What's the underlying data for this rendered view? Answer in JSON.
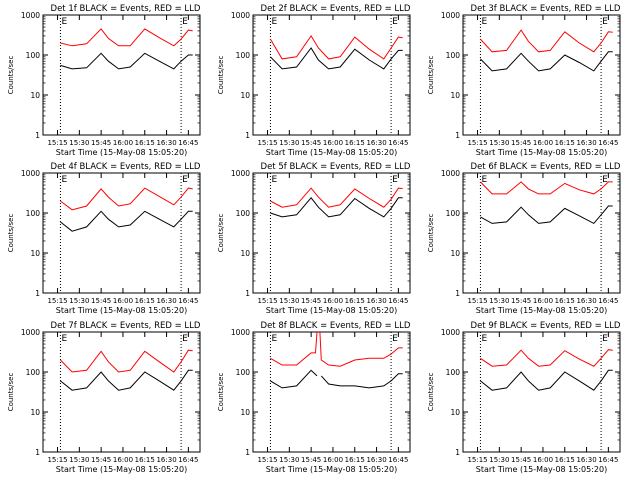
{
  "chart_data": [
    {
      "type": "line",
      "title": "Det 1f BLACK = Events, RED = LLD",
      "xlabel": "Start Time (15-May-08 15:05:20)",
      "ylabel": "Counts/sec",
      "xticks": [
        "15:15",
        "15:30",
        "15:45",
        "16:00",
        "16:15",
        "16:30",
        "16:45"
      ],
      "yticks": [
        "1",
        "10",
        "100",
        "1000"
      ],
      "ylog": true,
      "ylim": [
        1,
        1000
      ],
      "xlim_min": [
        8,
        45
      ],
      "markers": [
        "E",
        "E"
      ],
      "marker_pos_min": [
        12,
        95
      ],
      "series": [
        {
          "color": "#000000",
          "x_min": [
            12,
            20,
            30,
            40,
            45,
            52,
            60,
            70,
            80,
            90,
            95,
            100,
            103
          ],
          "y": [
            55,
            45,
            48,
            110,
            70,
            45,
            50,
            110,
            70,
            45,
            70,
            100,
            100
          ]
        },
        {
          "color": "#ff0000",
          "x_min": [
            12,
            20,
            30,
            40,
            45,
            52,
            60,
            70,
            80,
            90,
            95,
            100,
            103
          ],
          "y": [
            200,
            170,
            190,
            450,
            260,
            170,
            170,
            450,
            270,
            170,
            250,
            420,
            400
          ]
        }
      ]
    },
    {
      "type": "line",
      "title": "Det 2f BLACK = Events, RED = LLD",
      "xlabel": "Start Time (15-May-08 15:05:20)",
      "ylabel": "Counts/sec",
      "xticks": [
        "15:15",
        "15:30",
        "15:45",
        "16:00",
        "16:15",
        "16:30",
        "16:45"
      ],
      "yticks": [
        "1",
        "10",
        "100",
        "1000"
      ],
      "ylog": true,
      "ylim": [
        1,
        1000
      ],
      "xlim_min": [
        8,
        45
      ],
      "markers": [
        "E",
        "E"
      ],
      "marker_pos_min": [
        12,
        95
      ],
      "series": [
        {
          "color": "#000000",
          "x_min": [
            12,
            20,
            30,
            40,
            45,
            52,
            60,
            70,
            80,
            90,
            95,
            100,
            103
          ],
          "y": [
            90,
            45,
            50,
            150,
            75,
            45,
            50,
            140,
            75,
            45,
            80,
            130,
            130
          ]
        },
        {
          "color": "#ff0000",
          "x_min": [
            12,
            20,
            30,
            40,
            45,
            52,
            60,
            70,
            80,
            90,
            95,
            100,
            103
          ],
          "y": [
            250,
            80,
            90,
            300,
            150,
            80,
            90,
            280,
            140,
            80,
            150,
            280,
            270
          ]
        }
      ]
    },
    {
      "type": "line",
      "title": "Det 3f BLACK = Events, RED = LLD",
      "xlabel": "Start Time (15-May-08 15:05:20)",
      "ylabel": "Counts/sec",
      "xticks": [
        "15:15",
        "15:30",
        "15:45",
        "16:00",
        "16:15",
        "16:30",
        "16:45"
      ],
      "yticks": [
        "1",
        "10",
        "100",
        "1000"
      ],
      "ylog": true,
      "ylim": [
        1,
        1000
      ],
      "xlim_min": [
        8,
        45
      ],
      "markers": [
        "E",
        "E"
      ],
      "marker_pos_min": [
        12,
        95
      ],
      "series": [
        {
          "color": "#000000",
          "x_min": [
            12,
            20,
            30,
            40,
            45,
            52,
            60,
            70,
            80,
            90,
            95,
            100,
            103
          ],
          "y": [
            80,
            40,
            45,
            110,
            70,
            40,
            45,
            100,
            65,
            40,
            70,
            120,
            120
          ]
        },
        {
          "color": "#ff0000",
          "x_min": [
            12,
            20,
            30,
            40,
            45,
            52,
            60,
            70,
            80,
            90,
            95,
            100,
            103
          ],
          "y": [
            250,
            120,
            130,
            420,
            220,
            120,
            130,
            380,
            200,
            120,
            200,
            380,
            370
          ]
        }
      ]
    },
    {
      "type": "line",
      "title": "Det 4f BLACK = Events, RED = LLD",
      "xlabel": "Start Time (15-May-08 15:05:20)",
      "ylabel": "Counts/sec",
      "xticks": [
        "15:15",
        "15:30",
        "15:45",
        "16:00",
        "16:15",
        "16:30",
        "16:45"
      ],
      "yticks": [
        "1",
        "10",
        "100",
        "1000"
      ],
      "ylog": true,
      "ylim": [
        1,
        1000
      ],
      "xlim_min": [
        8,
        45
      ],
      "markers": [
        "E",
        "E"
      ],
      "marker_pos_min": [
        12,
        95
      ],
      "series": [
        {
          "color": "#000000",
          "x_min": [
            12,
            20,
            30,
            40,
            45,
            52,
            60,
            70,
            80,
            90,
            95,
            100,
            103
          ],
          "y": [
            60,
            35,
            45,
            110,
            70,
            45,
            50,
            110,
            70,
            45,
            70,
            110,
            110
          ]
        },
        {
          "color": "#ff0000",
          "x_min": [
            12,
            20,
            30,
            40,
            45,
            52,
            60,
            70,
            80,
            90,
            95,
            100,
            103
          ],
          "y": [
            200,
            120,
            150,
            400,
            250,
            150,
            170,
            420,
            260,
            160,
            250,
            420,
            400
          ]
        }
      ]
    },
    {
      "type": "line",
      "title": "Det 5f BLACK = Events, RED = LLD",
      "xlabel": "Start Time (15-May-08 15:05:20)",
      "ylabel": "Counts/sec",
      "xticks": [
        "15:15",
        "15:30",
        "15:45",
        "16:00",
        "16:15",
        "16:30",
        "16:45"
      ],
      "yticks": [
        "1",
        "10",
        "100",
        "1000"
      ],
      "ylog": true,
      "ylim": [
        1,
        1000
      ],
      "xlim_min": [
        8,
        45
      ],
      "markers": [
        "E",
        "E"
      ],
      "marker_pos_min": [
        12,
        95
      ],
      "series": [
        {
          "color": "#000000",
          "x_min": [
            12,
            20,
            30,
            40,
            45,
            52,
            60,
            70,
            80,
            90,
            95,
            100,
            103
          ],
          "y": [
            100,
            80,
            90,
            240,
            140,
            80,
            90,
            230,
            130,
            80,
            130,
            240,
            240
          ]
        },
        {
          "color": "#ff0000",
          "x_min": [
            12,
            20,
            30,
            40,
            45,
            52,
            60,
            70,
            80,
            90,
            95,
            100,
            103
          ],
          "y": [
            200,
            140,
            160,
            420,
            250,
            140,
            160,
            400,
            230,
            140,
            220,
            420,
            410
          ]
        }
      ]
    },
    {
      "type": "line",
      "title": "Det 6f BLACK = Events, RED = LLD",
      "xlabel": "Start Time (15-May-08 15:05:20)",
      "ylabel": "Counts/sec",
      "xticks": [
        "15:15",
        "15:30",
        "15:45",
        "16:00",
        "16:15",
        "16:30",
        "16:45"
      ],
      "yticks": [
        "1",
        "10",
        "100",
        "1000"
      ],
      "ylog": true,
      "ylim": [
        1,
        1000
      ],
      "xlim_min": [
        8,
        45
      ],
      "markers": [
        "E",
        "E"
      ],
      "marker_pos_min": [
        12,
        95
      ],
      "series": [
        {
          "color": "#000000",
          "x_min": [
            12,
            20,
            30,
            40,
            45,
            52,
            60,
            70,
            80,
            90,
            95,
            100,
            103
          ],
          "y": [
            80,
            55,
            60,
            140,
            90,
            55,
            60,
            130,
            85,
            55,
            90,
            150,
            150
          ]
        },
        {
          "color": "#ff0000",
          "x_min": [
            12,
            20,
            30,
            40,
            45,
            52,
            60,
            70,
            80,
            90,
            95,
            100,
            103
          ],
          "y": [
            600,
            300,
            300,
            600,
            400,
            300,
            300,
            550,
            380,
            300,
            400,
            600,
            600
          ]
        }
      ]
    },
    {
      "type": "line",
      "title": "Det 7f BLACK = Events, RED = LLD",
      "xlabel": "Start Time (15-May-08 15:05:20)",
      "ylabel": "Counts/sec",
      "xticks": [
        "15:15",
        "15:30",
        "15:45",
        "16:00",
        "16:15",
        "16:30",
        "16:45"
      ],
      "yticks": [
        "1",
        "10",
        "100",
        "1000"
      ],
      "ylog": true,
      "ylim": [
        1,
        1000
      ],
      "xlim_min": [
        8,
        45
      ],
      "markers": [
        "E",
        "E"
      ],
      "marker_pos_min": [
        12,
        95
      ],
      "series": [
        {
          "color": "#000000",
          "x_min": [
            12,
            20,
            30,
            40,
            45,
            52,
            60,
            70,
            80,
            90,
            95,
            100,
            103
          ],
          "y": [
            60,
            35,
            40,
            100,
            60,
            35,
            40,
            100,
            60,
            35,
            60,
            110,
            110
          ]
        },
        {
          "color": "#ff0000",
          "x_min": [
            12,
            20,
            30,
            40,
            45,
            52,
            60,
            70,
            80,
            90,
            95,
            100,
            103
          ],
          "y": [
            200,
            100,
            110,
            330,
            180,
            100,
            110,
            330,
            180,
            100,
            180,
            350,
            340
          ]
        }
      ]
    },
    {
      "type": "line",
      "title": "Det 8f BLACK = Events, RED = LLD",
      "xlabel": "Start Time (15-May-08 15:05:20)",
      "ylabel": "Counts/sec",
      "xticks": [
        "15:15",
        "15:30",
        "15:45",
        "16:00",
        "16:15",
        "16:30",
        "16:45"
      ],
      "yticks": [
        "1",
        "10",
        "100",
        "1000"
      ],
      "ylog": true,
      "ylim": [
        1,
        1000
      ],
      "xlim_min": [
        8,
        45
      ],
      "markers": [
        "E",
        "E"
      ],
      "marker_pos_min": [
        12,
        95
      ],
      "series": [
        {
          "color": "#000000",
          "x_min": [
            12,
            20,
            30,
            40,
            44
          ],
          "y": [
            60,
            40,
            45,
            110,
            80
          ]
        },
        {
          "color": "#000000",
          "x_min": [
            47,
            52,
            60,
            70,
            80,
            90,
            95,
            100,
            103
          ],
          "y": [
            80,
            50,
            45,
            45,
            40,
            45,
            60,
            90,
            90
          ]
        },
        {
          "color": "#ff0000",
          "x_min": [
            12,
            20,
            30,
            40,
            43,
            44
          ],
          "y": [
            220,
            150,
            150,
            300,
            300,
            1000
          ]
        },
        {
          "color": "#ff0000",
          "x_min": [
            46,
            47,
            52,
            60,
            70,
            80,
            90,
            95,
            100,
            103
          ],
          "y": [
            1000,
            200,
            150,
            140,
            200,
            220,
            220,
            280,
            400,
            400
          ]
        }
      ]
    },
    {
      "type": "line",
      "title": "Det 9f BLACK = Events, RED = LLD",
      "xlabel": "Start Time (15-May-08 15:05:20)",
      "ylabel": "Counts/sec",
      "xticks": [
        "15:15",
        "15:30",
        "15:45",
        "16:00",
        "16:15",
        "16:30",
        "16:45"
      ],
      "yticks": [
        "1",
        "10",
        "100",
        "1000"
      ],
      "ylog": true,
      "ylim": [
        1,
        1000
      ],
      "xlim_min": [
        8,
        45
      ],
      "markers": [
        "E",
        "E"
      ],
      "marker_pos_min": [
        12,
        95
      ],
      "series": [
        {
          "color": "#000000",
          "x_min": [
            12,
            20,
            30,
            40,
            45,
            52,
            60,
            70,
            80,
            90,
            95,
            100,
            103
          ],
          "y": [
            60,
            35,
            40,
            100,
            60,
            35,
            40,
            100,
            60,
            35,
            60,
            110,
            110
          ]
        },
        {
          "color": "#ff0000",
          "x_min": [
            12,
            20,
            30,
            40,
            45,
            52,
            60,
            70,
            80,
            90,
            95,
            100,
            103
          ],
          "y": [
            220,
            140,
            150,
            350,
            220,
            140,
            150,
            340,
            210,
            140,
            220,
            360,
            350
          ]
        }
      ]
    }
  ]
}
